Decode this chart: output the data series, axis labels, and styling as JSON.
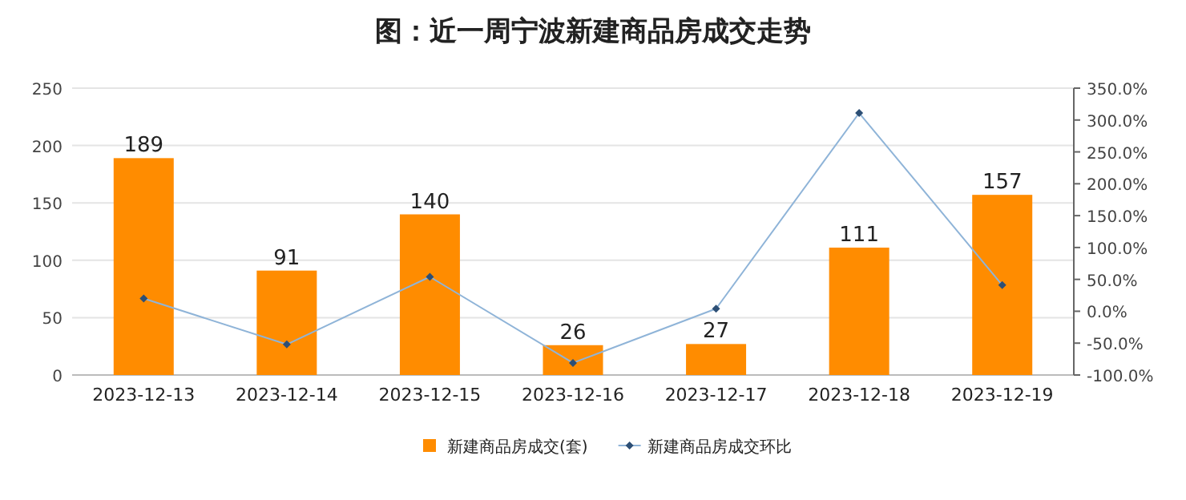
{
  "chart_data": {
    "type": "bar",
    "title": "图：近一周宁波新建商品房成交走势",
    "categories": [
      "2023-12-13",
      "2023-12-14",
      "2023-12-15",
      "2023-12-16",
      "2023-12-17",
      "2023-12-18",
      "2023-12-19"
    ],
    "series": [
      {
        "name": "新建商品房成交(套)",
        "color": "#ff8c00",
        "values": [
          189,
          91,
          140,
          26,
          27,
          111,
          157
        ],
        "value_labels": [
          "189",
          "91",
          "140",
          "26",
          "27",
          "111",
          "157"
        ]
      },
      {
        "name": "新建商品房成交环比",
        "type": "line",
        "axis": "y2",
        "color": "#8fb4d8",
        "marker": "diamond",
        "values": [
          20,
          -52,
          54,
          -81,
          4,
          311,
          41
        ]
      }
    ],
    "ylim": [
      0,
      250
    ],
    "yticks": [
      0,
      50,
      100,
      150,
      200,
      250
    ],
    "y2lim": [
      -100,
      350
    ],
    "y2ticks": [
      {
        "value": -100,
        "label": "-100.0%"
      },
      {
        "value": -50,
        "label": "-50.0%"
      },
      {
        "value": 0,
        "label": "0.0%"
      },
      {
        "value": 50,
        "label": "50.0%"
      },
      {
        "value": 100,
        "label": "100.0%"
      },
      {
        "value": 150,
        "label": "150.0%"
      },
      {
        "value": 200,
        "label": "200.0%"
      },
      {
        "value": 250,
        "label": "250.0%"
      },
      {
        "value": 300,
        "label": "300.0%"
      },
      {
        "value": 350,
        "label": "350.0%"
      }
    ],
    "grid": "y",
    "legend": "bottom"
  }
}
